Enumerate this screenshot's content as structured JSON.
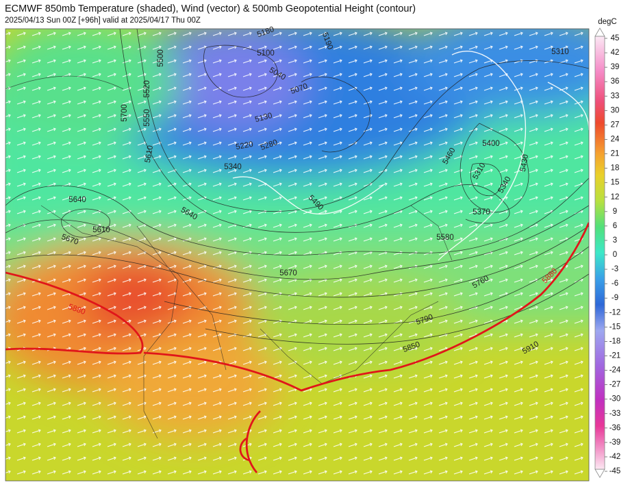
{
  "header": {
    "title": "ECMWF 850mb Temperature (shaded), Wind (vector) & 500mb Geopotential Height (contour)",
    "subtitle": "2025/04/13 Sun 00Z [+96h] valid at 2025/04/17 Thu 00Z"
  },
  "colorbar": {
    "unit": "degC",
    "range": [
      -45,
      45
    ],
    "ticks": [
      45,
      42,
      39,
      36,
      33,
      30,
      27,
      24,
      21,
      18,
      15,
      12,
      9,
      6,
      3,
      0,
      -3,
      -6,
      -9,
      -12,
      -15,
      -18,
      -21,
      -24,
      -27,
      -30,
      -33,
      -36,
      -39,
      -42,
      -45
    ]
  },
  "contour_labels": [
    5180,
    5100,
    5190,
    5310,
    5040,
    5070,
    5130,
    5520,
    5500,
    5700,
    5550,
    5610,
    5220,
    5280,
    5340,
    5400,
    5460,
    5310,
    5340,
    5430,
    5490,
    5370,
    5640,
    5640,
    5610,
    5670,
    5580,
    5670,
    5880,
    5760,
    5880,
    5790,
    5850,
    5910
  ]
}
